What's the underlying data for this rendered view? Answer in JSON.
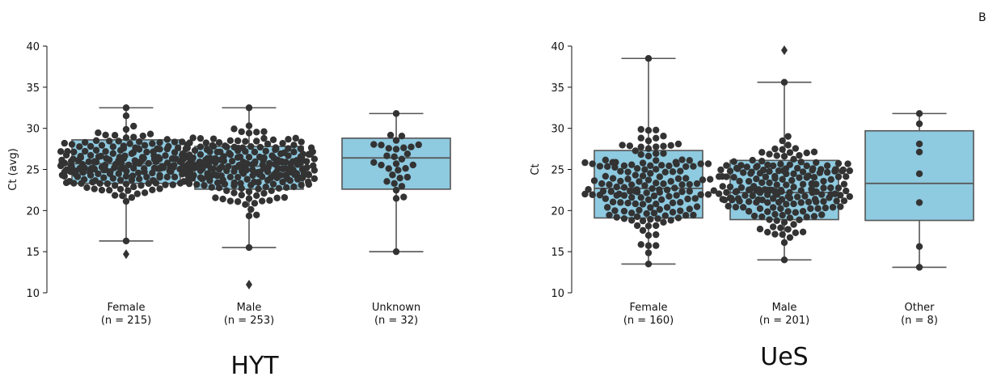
{
  "panel_letter": "B",
  "colors": {
    "box_fill": "#8ecae0",
    "box_edge": "#555555",
    "point": "#333333"
  },
  "chart_data": [
    {
      "type": "box",
      "title": "HYT",
      "ylabel": "Ct (avg)",
      "xlabel": "",
      "ylim": [
        10,
        40
      ],
      "yticks": [
        10,
        15,
        20,
        25,
        30,
        35,
        40
      ],
      "categories": [
        "Female",
        "Male",
        "Unknown"
      ],
      "counts": [
        "(n = 215)",
        "(n = 253)",
        "(n = 32)"
      ],
      "boxes": [
        {
          "whisker_low": 16.3,
          "q1": 23.3,
          "median": 25.7,
          "q3": 28.6,
          "whisker_high": 32.5,
          "outliers": [
            14.7
          ]
        },
        {
          "whisker_low": 15.5,
          "q1": 22.6,
          "median": 25.4,
          "q3": 27.8,
          "whisker_high": 32.5,
          "outliers": [
            11.0
          ]
        },
        {
          "whisker_low": 15.0,
          "q1": 22.6,
          "median": 26.4,
          "q3": 28.8,
          "whisker_high": 31.8,
          "outliers": []
        }
      ],
      "n_points": [
        215,
        253,
        32
      ]
    },
    {
      "type": "box",
      "title": "UeS",
      "ylabel": "Ct",
      "xlabel": "",
      "ylim": [
        10,
        40
      ],
      "yticks": [
        10,
        15,
        20,
        25,
        30,
        35,
        40
      ],
      "categories": [
        "Female",
        "Male",
        "Other"
      ],
      "counts": [
        "(n = 160)",
        "(n = 201)",
        "(n = 8)"
      ],
      "boxes": [
        {
          "whisker_low": 13.5,
          "q1": 19.1,
          "median": 22.7,
          "q3": 27.3,
          "whisker_high": 38.5,
          "outliers": []
        },
        {
          "whisker_low": 14.0,
          "q1": 18.9,
          "median": 22.2,
          "q3": 26.1,
          "whisker_high": 35.6,
          "outliers": [
            39.5
          ]
        },
        {
          "whisker_low": 13.1,
          "q1": 18.8,
          "median": 23.3,
          "q3": 29.7,
          "whisker_high": 31.8,
          "outliers": []
        }
      ],
      "n_points": [
        160,
        201,
        8
      ]
    }
  ]
}
